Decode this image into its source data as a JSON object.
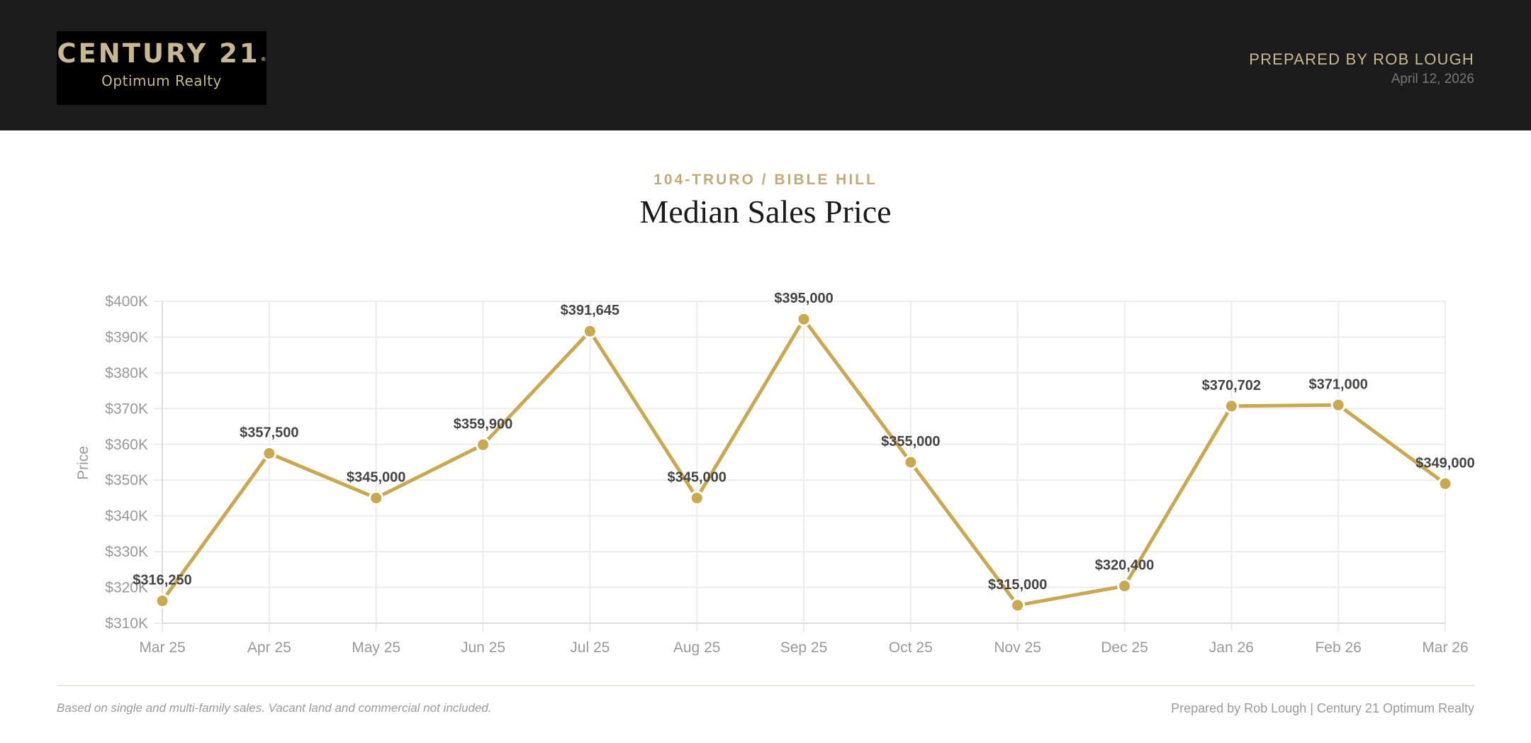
{
  "header": {
    "logo": {
      "brand": "CENTURY 21",
      "registered": "®",
      "office": "Optimum Realty"
    },
    "prepared_by": "PREPARED BY ROB LOUGH",
    "date": "April 12, 2026"
  },
  "report": {
    "area": "104-TRURO / BIBLE HILL",
    "title": "Median Sales Price"
  },
  "colors": {
    "header_bg": "#1b1b1b",
    "logo_bg": "#000000",
    "gold": "#c8b891",
    "line": "#c9a84f",
    "grid": "#ececec"
  },
  "chart_data": {
    "type": "line",
    "title": "Median Sales Price",
    "subtitle": "104-TRURO / BIBLE HILL",
    "xlabel": "",
    "ylabel": "Price",
    "categories": [
      "Mar 25",
      "Apr 25",
      "May 25",
      "Jun 25",
      "Jul 25",
      "Aug 25",
      "Sep 25",
      "Oct 25",
      "Nov 25",
      "Dec 25",
      "Jan 26",
      "Feb 26",
      "Mar 26"
    ],
    "values": [
      316250,
      357500,
      345000,
      359900,
      391645,
      345000,
      395000,
      355000,
      315000,
      320400,
      370702,
      371000,
      349000
    ],
    "data_labels": [
      "$316,250",
      "$357,500",
      "$345,000",
      "$359,900",
      "$391,645",
      "$345,000",
      "$395,000",
      "$355,000",
      "$315,000",
      "$320,400",
      "$370,702",
      "$371,000",
      "$349,000"
    ],
    "yticks": [
      "$310K",
      "$320K",
      "$330K",
      "$340K",
      "$350K",
      "$360K",
      "$370K",
      "$380K",
      "$390K",
      "$400K"
    ],
    "ytick_values": [
      310000,
      320000,
      330000,
      340000,
      350000,
      360000,
      370000,
      380000,
      390000,
      400000
    ],
    "ylim": [
      310000,
      400000
    ],
    "grid": true,
    "legend": null
  },
  "footer": {
    "note": "Based on single and multi-family sales. Vacant land and commercial not included.",
    "credit": "Prepared by Rob Lough | Century 21 Optimum Realty"
  }
}
